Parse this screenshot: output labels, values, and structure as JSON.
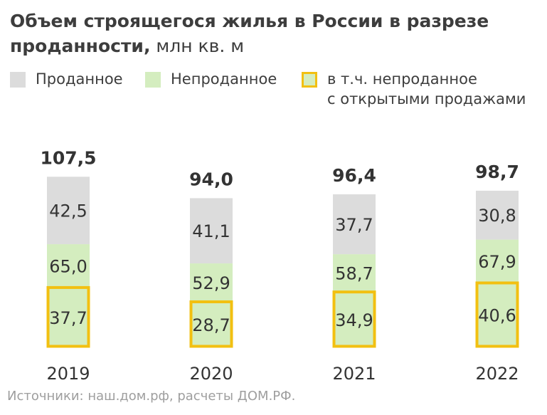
{
  "title": {
    "bold": "Объем строящегося жилья в России в разрезе проданности,",
    "unit": "млн кв. м"
  },
  "legend": [
    {
      "label": "Проданное",
      "color": "#dcdcdc"
    },
    {
      "label": "Непроданное",
      "color": "#d4edbf"
    },
    {
      "label": "в т.ч. непроданное\nс открытыми продажами",
      "color": "#d4edbf",
      "border": "#f2c011"
    }
  ],
  "chart_data": {
    "type": "bar",
    "stacked": true,
    "categories": [
      "2019",
      "2020",
      "2021",
      "2022"
    ],
    "totals": [
      "107,5",
      "94,0",
      "96,4",
      "98,7"
    ],
    "series": [
      {
        "name": "Непроданное",
        "values": [
          65.0,
          52.9,
          58.7,
          67.9
        ],
        "labels": [
          "65,0",
          "52,9",
          "58,7",
          "67,9"
        ],
        "color": "#d4edbf"
      },
      {
        "name": "Проданное",
        "values": [
          42.5,
          41.1,
          37.7,
          30.8
        ],
        "labels": [
          "42,5",
          "41,1",
          "37,7",
          "30,8"
        ],
        "color": "#dcdcdc"
      }
    ],
    "highlight": {
      "name": "в т.ч. непроданное с открытыми продажами",
      "values": [
        37.7,
        28.7,
        34.9,
        40.6
      ],
      "labels": [
        "37,7",
        "28,7",
        "34,9",
        "40,6"
      ],
      "border_color": "#f2c011"
    }
  },
  "source": "Источники: наш.дом.рф, расчеты ДОМ.РФ."
}
